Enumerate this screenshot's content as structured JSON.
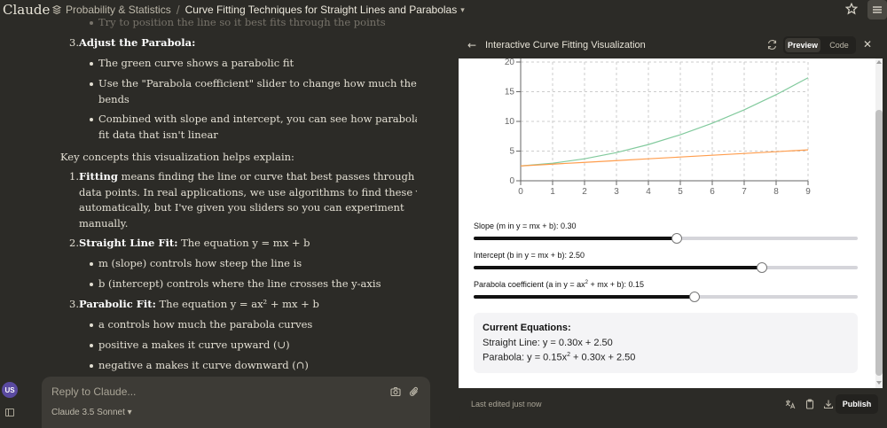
{
  "app": {
    "brand": "Claude"
  },
  "breadcrumb": {
    "project": "Probability & Statistics",
    "separator": "/",
    "chat_title": "Curve Fitting Techniques for Straight Lines and Parabolas"
  },
  "chat": {
    "faded_line": "Try to position the line so it best fits through the points",
    "step3_num": "3.",
    "step3_title": "Adjust the Parabola:",
    "step3_bullets": [
      "The green curve shows a parabolic fit",
      "Use the \"Parabola coefficient\" slider to change how much the curve",
      "bends",
      "Combined with slope and intercept, you can see how parabolas can",
      "fit data that isn't linear"
    ],
    "key_concepts": "Key concepts this visualization helps explain:",
    "c1_num": "1.",
    "c1_bold": "Fitting",
    "c1_lines": [
      " means finding the line or curve that best passes through your",
      "data points. In real applications, we use algorithms to find these values",
      "automatically, but I've given you sliders so you can experiment",
      "manually."
    ],
    "c2_num": "2.",
    "c2_bold": "Straight Line Fit:",
    "c2_text": " The equation y = mx + b",
    "c2_bullets": [
      "m (slope) controls how steep the line is",
      "b (intercept) controls where the line crosses the y-axis"
    ],
    "c3_num": "3.",
    "c3_bold": "Parabolic Fit:",
    "c3_text": " The equation y = ax² + mx + b",
    "c3_bullets": [
      "a controls how much the parabola curves",
      "positive a makes it curve upward (∪)",
      "negative a makes it curve downward (∩)"
    ]
  },
  "reply": {
    "placeholder": "Reply to Claude...",
    "model": "Claude 3.5 Sonnet"
  },
  "user": {
    "initials": "US"
  },
  "artifact": {
    "title": "Interactive Curve Fitting Visualization",
    "tab_preview": "Preview",
    "tab_code": "Code",
    "last_edited": "Last edited just now",
    "publish_label": "Publish",
    "sliders": [
      {
        "label": "Slope (m in y = mx + b): 0.30",
        "value": 0.3,
        "fill_fraction": 0.53
      },
      {
        "label": "Intercept (b in y = mx + b): 2.50",
        "value": 2.5,
        "fill_fraction": 0.75
      },
      {
        "label_pre": "Parabola coefficient (a in y = ax",
        "label_sup": "2",
        "label_post": " + mx + b): 0.15",
        "value": 0.15,
        "fill_fraction": 0.575
      }
    ],
    "equations": {
      "title": "Current Equations:",
      "straight_line": "Straight Line: y = 0.30x + 2.50",
      "parabola_pre": "Parabola: y = 0.15x",
      "parabola_sup": "2",
      "parabola_post": " + 0.30x + 2.50"
    }
  },
  "chart_data": {
    "type": "line",
    "x_ticks": [
      0,
      1,
      2,
      3,
      4,
      5,
      6,
      7,
      8,
      9
    ],
    "y_ticks": [
      0,
      5,
      10,
      15,
      20
    ],
    "xlim": [
      0,
      9
    ],
    "ylim": [
      0,
      20
    ],
    "grid": true,
    "series": [
      {
        "color": "#82ca9d",
        "x": [
          0,
          1,
          2,
          3,
          4,
          5,
          6,
          7,
          8,
          9
        ],
        "values": [
          2.5,
          2.95,
          3.7,
          4.75,
          6.1,
          7.75,
          9.7,
          11.95,
          14.5,
          17.35
        ]
      },
      {
        "color": "#ff9d4d",
        "x": [
          0,
          1,
          2,
          3,
          4,
          5,
          6,
          7,
          8,
          9
        ],
        "values": [
          2.5,
          2.8,
          3.1,
          3.4,
          3.7,
          4.0,
          4.3,
          4.6,
          4.9,
          5.2
        ]
      }
    ]
  }
}
